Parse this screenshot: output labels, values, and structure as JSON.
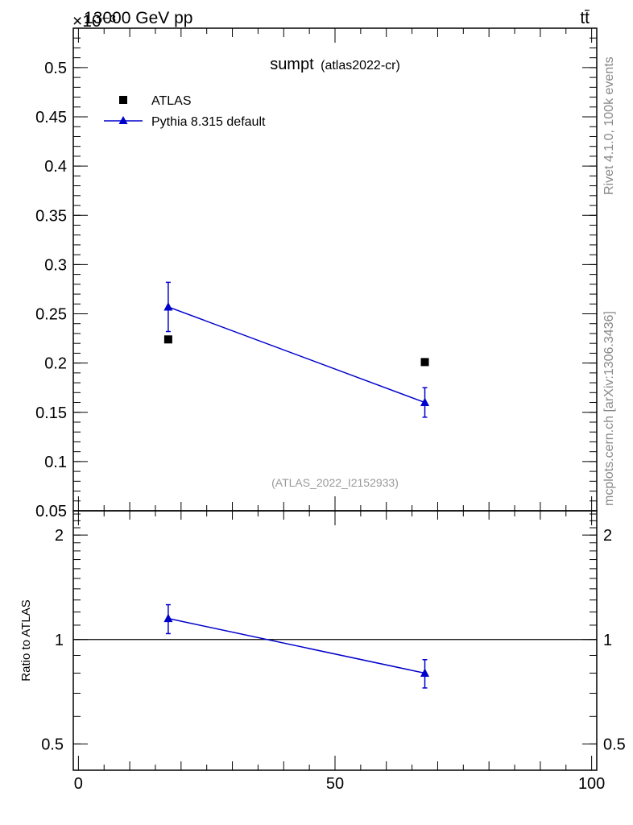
{
  "header": {
    "energy_label": "13000 GeV pp",
    "process_label": "tt̄",
    "exponent_label": "×10⁻³"
  },
  "side_labels": {
    "rivet": "Rivet 4.1.0,  100k events",
    "mcplots": "mcplots.cern.ch [arXiv:1306.3436]"
  },
  "chart_data": {
    "type": "scatter",
    "title": "sumpt",
    "subtitle": "(atlas2022-cr)",
    "watermark": "(ATLAS_2022_I2152933)",
    "xlim": [
      -1,
      101
    ],
    "x_ticks": [
      0,
      50,
      100
    ],
    "main": {
      "ylim": [
        0.05,
        0.54
      ],
      "y_ticks": [
        0.05,
        0.1,
        0.15,
        0.2,
        0.25,
        0.3,
        0.35,
        0.4,
        0.45,
        0.5
      ],
      "y_tick_labels": [
        "0.05",
        "0.1",
        "0.15",
        "0.2",
        "0.25",
        "0.3",
        "0.35",
        "0.4",
        "0.45",
        "0.5"
      ],
      "y_multiplier": "×10⁻³",
      "series": [
        {
          "name": "ATLAS",
          "marker": "square",
          "color": "#000000",
          "x": [
            17.5,
            67.5
          ],
          "y": [
            0.224,
            0.201
          ],
          "err": [
            0.0,
            0.0
          ]
        },
        {
          "name": "Pythia 8.315 default",
          "marker": "triangle",
          "color": "#0000cc",
          "x": [
            17.5,
            67.5
          ],
          "y": [
            0.257,
            0.16
          ],
          "err": [
            0.025,
            0.015
          ]
        }
      ]
    },
    "ratio": {
      "ylabel": "Ratio to ATLAS",
      "y_ticks": [
        0.5,
        1,
        2
      ],
      "y_tick_labels": [
        "0.5",
        "1",
        "2"
      ],
      "ylim": [
        0.42,
        2.35
      ],
      "scale": "log",
      "reference": 1,
      "series": [
        {
          "name": "Pythia 8.315 default",
          "color": "#0000cc",
          "x": [
            17.5,
            67.5
          ],
          "y": [
            1.15,
            0.8
          ],
          "err": [
            0.11,
            0.075
          ]
        }
      ]
    },
    "legend_position": "top-left"
  }
}
